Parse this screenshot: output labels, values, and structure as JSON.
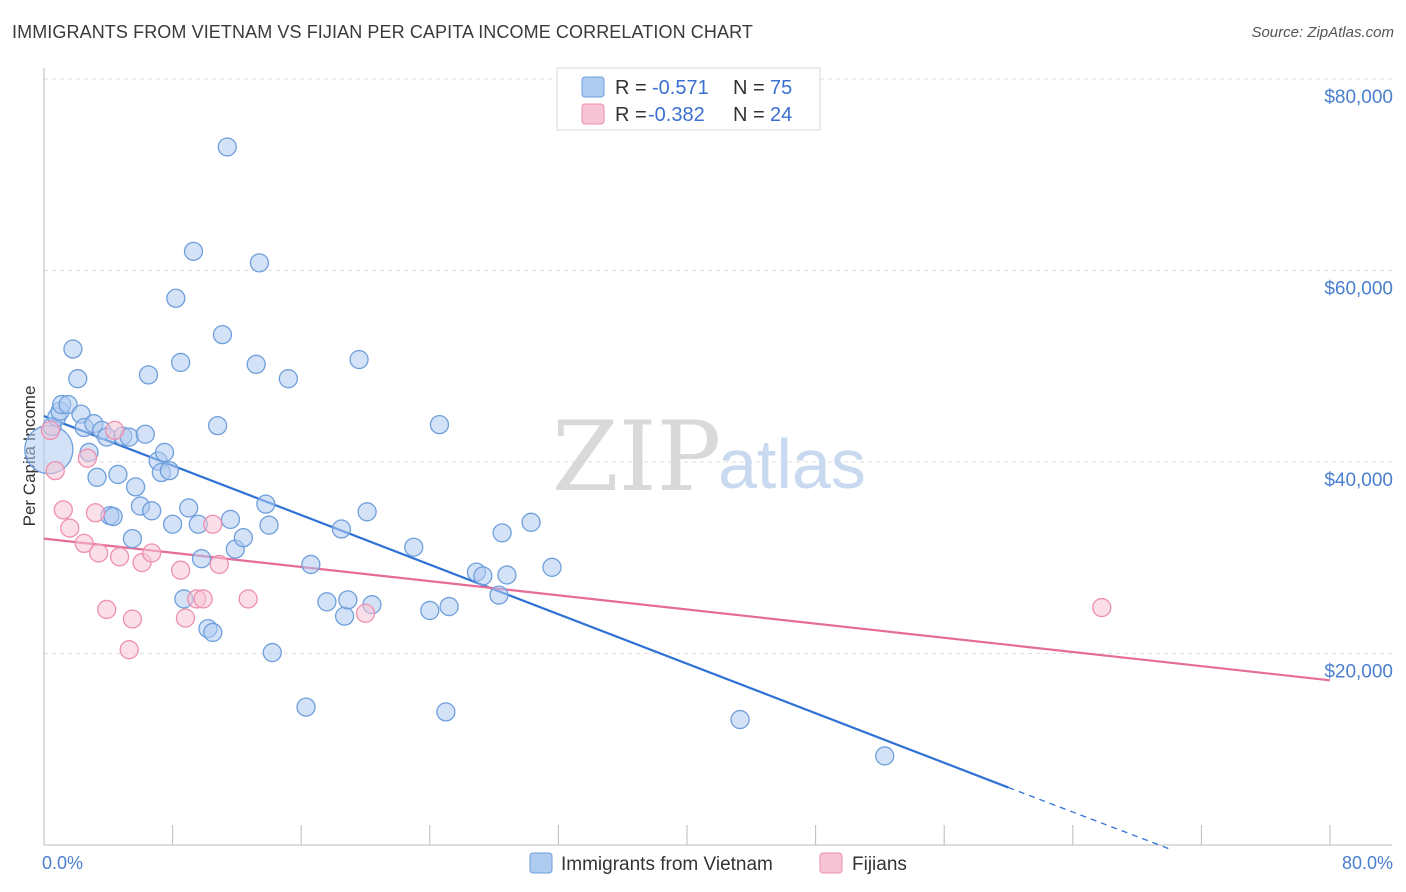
{
  "title": "IMMIGRANTS FROM VIETNAM VS FIJIAN PER CAPITA INCOME CORRELATION CHART",
  "source": "Source: ZipAtlas.com",
  "watermark": {
    "zip": "ZIP",
    "atlas": "atlas"
  },
  "colors": {
    "blue_fill": "#aecbf0",
    "blue_stroke": "#6f9fdc",
    "blue_line": "#2f72d4",
    "pink_fill": "#f7c4d5",
    "pink_stroke": "#ee8fb0",
    "pink_line": "#e56b98",
    "grid": "#dddddd",
    "tick_label": "#4a7fcf"
  },
  "legend": {
    "rows": [
      {
        "r_label": "R = ",
        "r_value": "-0.571",
        "n_label": "N = ",
        "n_value": "75"
      },
      {
        "r_label": "R = ",
        "r_value": "-0.382",
        "n_label": "N = ",
        "n_value": "24"
      }
    ]
  },
  "bottom_legend": {
    "series1": "Immigrants from Vietnam",
    "series2": "Fijians"
  },
  "chart_data": {
    "type": "scatter",
    "title": "IMMIGRANTS FROM VIETNAM VS FIJIAN PER CAPITA INCOME CORRELATION CHART",
    "xlabel": "",
    "ylabel": "Per Capita Income",
    "xlim": [
      0,
      80
    ],
    "ylim": [
      0,
      80000
    ],
    "x_tick_labels": [
      "0.0%",
      "80.0%"
    ],
    "y_ticks": [
      20000,
      40000,
      60000,
      80000
    ],
    "y_tick_labels": [
      "$20,000",
      "$40,000",
      "$60,000",
      "$80,000"
    ],
    "series": [
      {
        "name": "Immigrants from Vietnam",
        "color": "#aecbf0",
        "r": -0.571,
        "n": 75,
        "trend": {
          "x0": 0,
          "y0": 44800,
          "x1": 60,
          "y1": 6000,
          "dash_to_x": 70,
          "dash_to_y": -400
        },
        "points": [
          {
            "x": 0.3,
            "y": 41300,
            "big": true
          },
          {
            "x": 0.5,
            "y": 43700
          },
          {
            "x": 0.8,
            "y": 44700
          },
          {
            "x": 1.0,
            "y": 45300
          },
          {
            "x": 1.1,
            "y": 46000
          },
          {
            "x": 1.5,
            "y": 46000
          },
          {
            "x": 1.8,
            "y": 51800
          },
          {
            "x": 2.1,
            "y": 48700
          },
          {
            "x": 2.3,
            "y": 45000
          },
          {
            "x": 2.5,
            "y": 43600
          },
          {
            "x": 2.8,
            "y": 41000
          },
          {
            "x": 3.1,
            "y": 44000
          },
          {
            "x": 3.3,
            "y": 38400
          },
          {
            "x": 3.6,
            "y": 43300
          },
          {
            "x": 3.9,
            "y": 42600
          },
          {
            "x": 4.1,
            "y": 34400
          },
          {
            "x": 4.3,
            "y": 34300
          },
          {
            "x": 4.6,
            "y": 38700
          },
          {
            "x": 4.9,
            "y": 42700
          },
          {
            "x": 5.3,
            "y": 42600
          },
          {
            "x": 5.5,
            "y": 32000
          },
          {
            "x": 5.7,
            "y": 37400
          },
          {
            "x": 6.0,
            "y": 35400
          },
          {
            "x": 6.3,
            "y": 42900
          },
          {
            "x": 6.5,
            "y": 49100
          },
          {
            "x": 6.7,
            "y": 34900
          },
          {
            "x": 7.1,
            "y": 40100
          },
          {
            "x": 7.3,
            "y": 38900
          },
          {
            "x": 7.5,
            "y": 41000
          },
          {
            "x": 7.8,
            "y": 39100
          },
          {
            "x": 8.0,
            "y": 33500
          },
          {
            "x": 8.2,
            "y": 57100
          },
          {
            "x": 8.5,
            "y": 50400
          },
          {
            "x": 8.7,
            "y": 25700
          },
          {
            "x": 9.0,
            "y": 35200
          },
          {
            "x": 9.3,
            "y": 62000
          },
          {
            "x": 9.6,
            "y": 33500
          },
          {
            "x": 9.8,
            "y": 29900
          },
          {
            "x": 10.2,
            "y": 22600
          },
          {
            "x": 10.5,
            "y": 22200
          },
          {
            "x": 10.8,
            "y": 43800
          },
          {
            "x": 11.1,
            "y": 53300
          },
          {
            "x": 11.4,
            "y": 72900
          },
          {
            "x": 11.6,
            "y": 34000
          },
          {
            "x": 11.9,
            "y": 30900
          },
          {
            "x": 12.4,
            "y": 32100
          },
          {
            "x": 13.2,
            "y": 50200
          },
          {
            "x": 13.4,
            "y": 60800
          },
          {
            "x": 13.8,
            "y": 35600
          },
          {
            "x": 14.0,
            "y": 33400
          },
          {
            "x": 14.2,
            "y": 20100
          },
          {
            "x": 15.2,
            "y": 48700
          },
          {
            "x": 16.3,
            "y": 14400
          },
          {
            "x": 16.6,
            "y": 29300
          },
          {
            "x": 17.6,
            "y": 25400
          },
          {
            "x": 18.5,
            "y": 33000
          },
          {
            "x": 18.7,
            "y": 23900
          },
          {
            "x": 18.9,
            "y": 25600
          },
          {
            "x": 19.6,
            "y": 50700
          },
          {
            "x": 20.1,
            "y": 34800
          },
          {
            "x": 20.4,
            "y": 25100
          },
          {
            "x": 23.0,
            "y": 31100
          },
          {
            "x": 24.0,
            "y": 24500
          },
          {
            "x": 24.6,
            "y": 43900
          },
          {
            "x": 25.0,
            "y": 13900
          },
          {
            "x": 25.2,
            "y": 24900
          },
          {
            "x": 26.9,
            "y": 28500
          },
          {
            "x": 27.3,
            "y": 28100
          },
          {
            "x": 28.5,
            "y": 32600
          },
          {
            "x": 28.3,
            "y": 26100
          },
          {
            "x": 28.8,
            "y": 28200
          },
          {
            "x": 30.3,
            "y": 33700
          },
          {
            "x": 31.6,
            "y": 29000
          },
          {
            "x": 43.3,
            "y": 13100
          },
          {
            "x": 52.3,
            "y": 9300
          }
        ]
      },
      {
        "name": "Fijians",
        "color": "#f7c4d5",
        "r": -0.382,
        "n": 24,
        "trend": {
          "x0": 0,
          "y0": 32000,
          "x1": 80,
          "y1": 17200
        },
        "points": [
          {
            "x": 0.4,
            "y": 43300
          },
          {
            "x": 0.7,
            "y": 39100
          },
          {
            "x": 1.2,
            "y": 35000
          },
          {
            "x": 1.6,
            "y": 33100
          },
          {
            "x": 2.5,
            "y": 31500
          },
          {
            "x": 2.7,
            "y": 40400
          },
          {
            "x": 3.2,
            "y": 34700
          },
          {
            "x": 3.4,
            "y": 30500
          },
          {
            "x": 3.9,
            "y": 24600
          },
          {
            "x": 4.4,
            "y": 43300
          },
          {
            "x": 4.7,
            "y": 30100
          },
          {
            "x": 5.3,
            "y": 20400
          },
          {
            "x": 5.5,
            "y": 23600
          },
          {
            "x": 6.1,
            "y": 29500
          },
          {
            "x": 6.7,
            "y": 30500
          },
          {
            "x": 8.5,
            "y": 28700
          },
          {
            "x": 8.8,
            "y": 23700
          },
          {
            "x": 9.5,
            "y": 25700
          },
          {
            "x": 9.9,
            "y": 25700
          },
          {
            "x": 10.5,
            "y": 33500
          },
          {
            "x": 10.9,
            "y": 29300
          },
          {
            "x": 12.7,
            "y": 25700
          },
          {
            "x": 20.0,
            "y": 24200
          },
          {
            "x": 65.8,
            "y": 24800
          }
        ]
      }
    ]
  }
}
